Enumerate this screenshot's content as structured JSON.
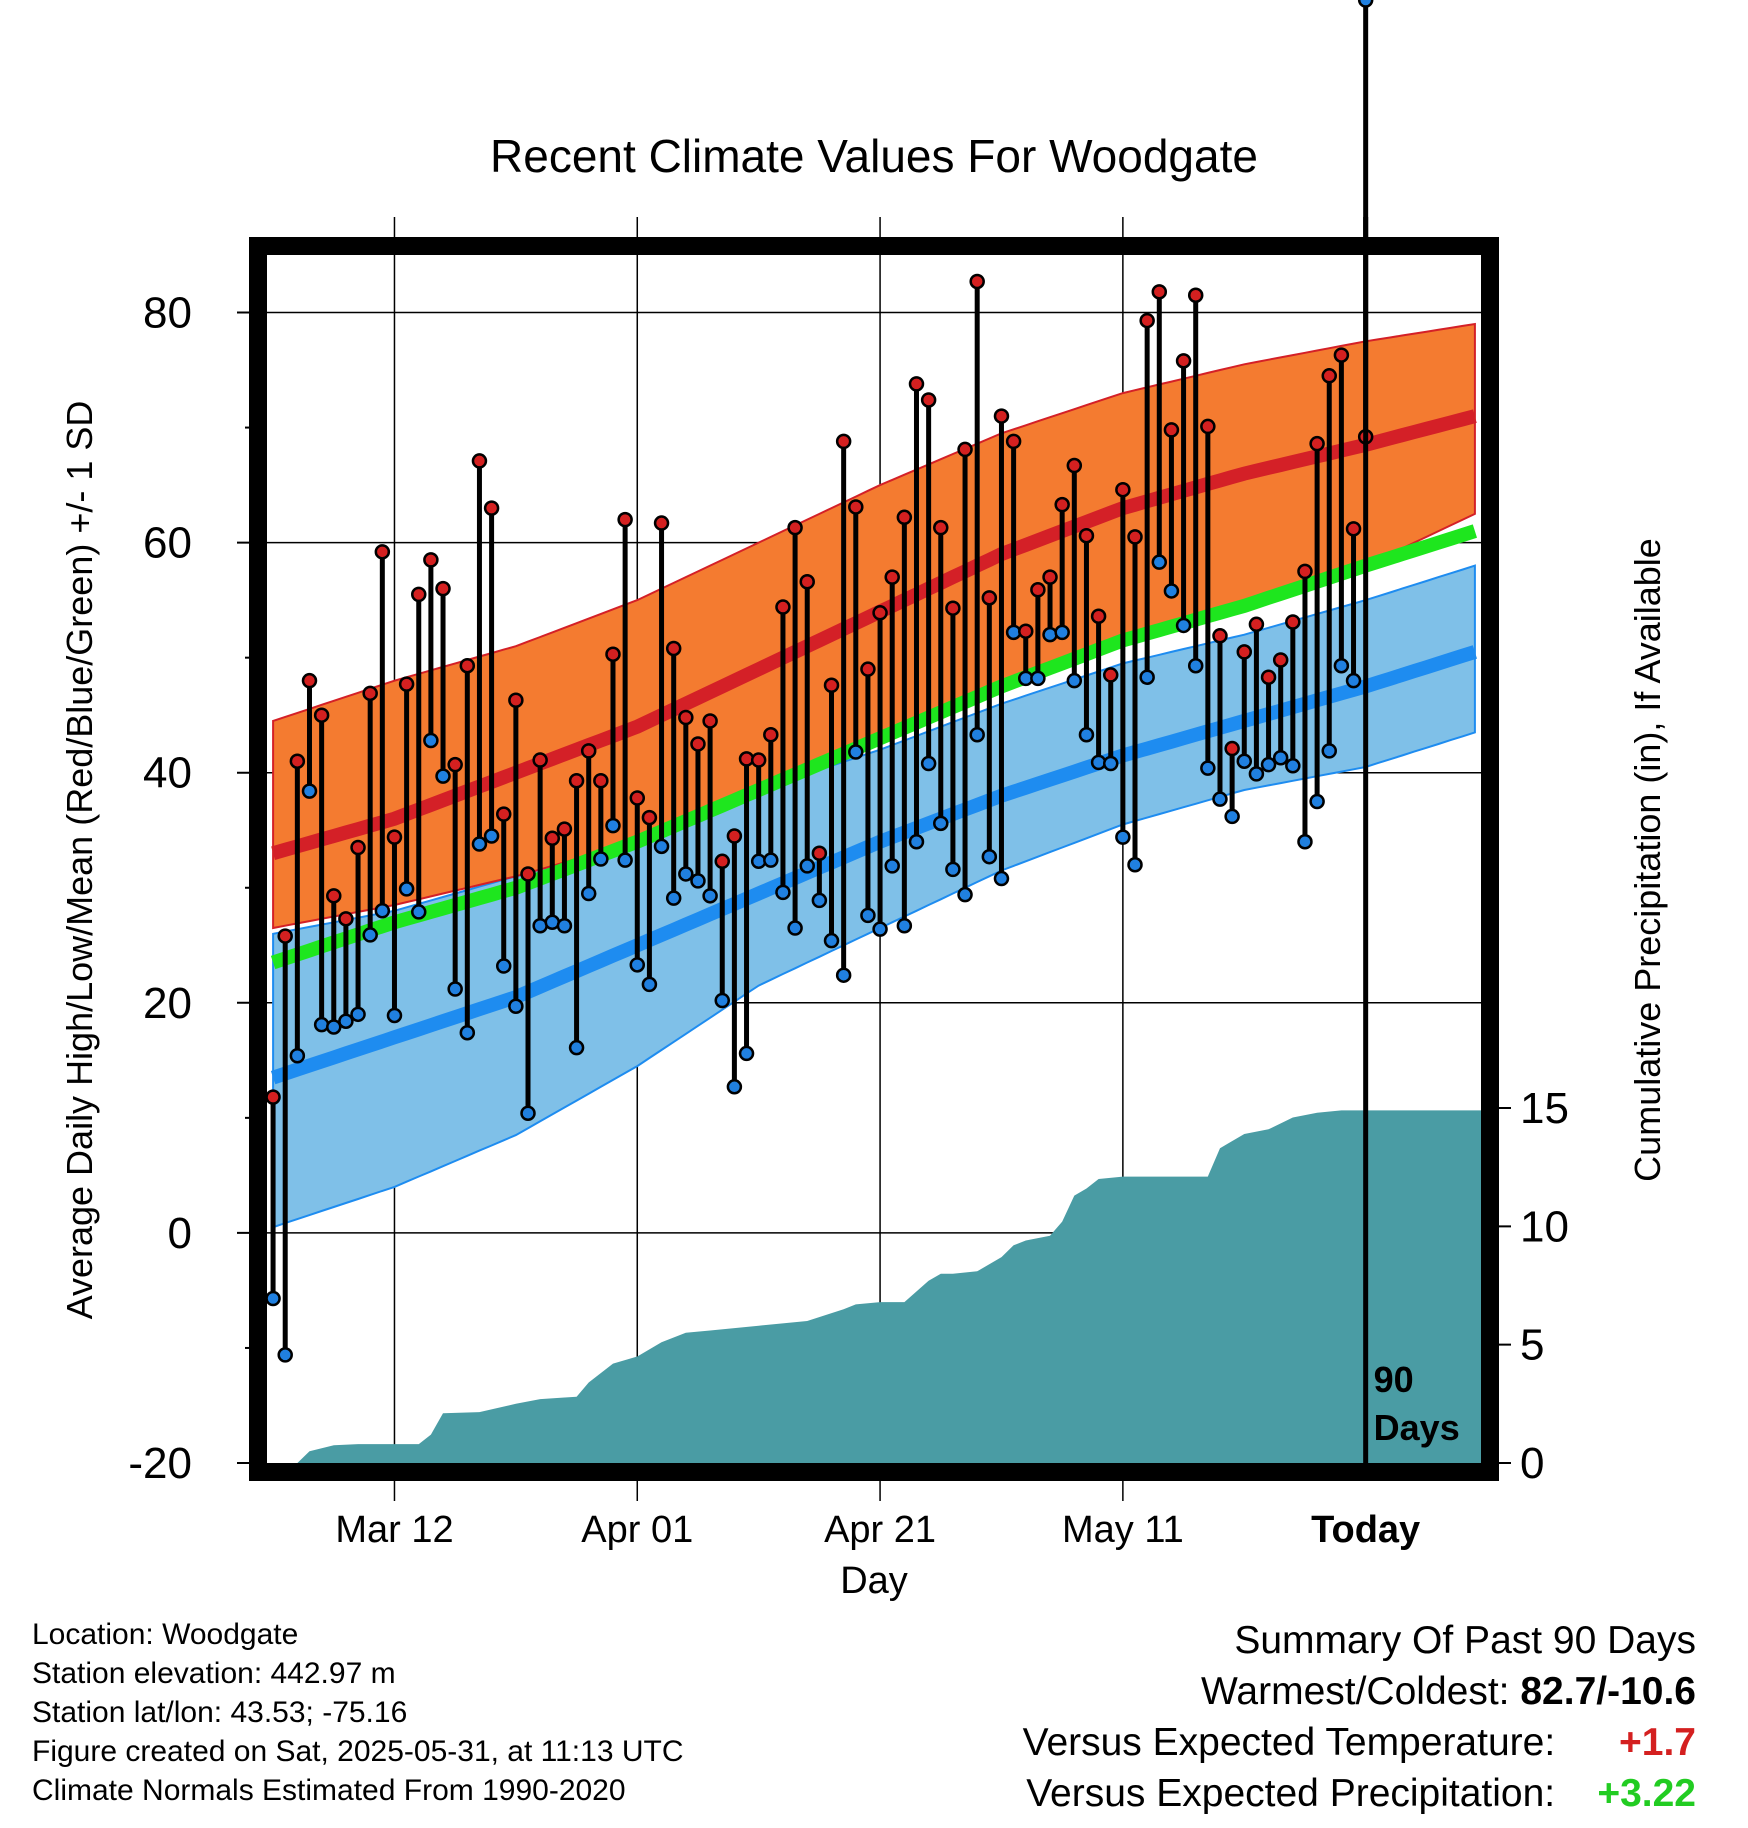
{
  "chart_data": {
    "type": "line",
    "title": "Recent Climate Values For Woodgate",
    "xlabel": "Day",
    "ylabel": "Average Daily High/Low/Mean (Red/Blue/Green) +/- 1 SD",
    "y2label": "Cumulative Precipitation (in), If Available",
    "ylim": [
      -20,
      85
    ],
    "y2lim": [
      0,
      15
    ],
    "y_ticks": [
      "80",
      "60",
      "40",
      "20",
      "0",
      "-20"
    ],
    "y2_ticks": [
      "15",
      "10",
      "5",
      "0"
    ],
    "x_tick_labels": [
      "Mar 12",
      "Apr 01",
      "Apr 21",
      "May 11",
      "Today"
    ],
    "x_tick_days": [
      10,
      30,
      50,
      70,
      90
    ],
    "xlim": [
      -0.5,
      99.5
    ],
    "grid": true,
    "today_marker": {
      "day": 90,
      "label_line1": "90",
      "label_line2": "Days"
    },
    "normals": {
      "days": [
        0,
        10,
        20,
        30,
        40,
        50,
        60,
        70,
        80,
        90,
        99
      ],
      "high_mean": [
        33,
        36,
        40,
        44,
        49,
        54,
        59,
        63,
        66,
        68.5,
        71
      ],
      "high_sd_upper": [
        44.5,
        48,
        51,
        55,
        60,
        65,
        69.5,
        73,
        75.5,
        77.5,
        79
      ],
      "high_sd_lower": [
        26.5,
        28.5,
        31,
        34,
        38.5,
        43,
        48,
        51.5,
        55,
        58,
        62.5
      ],
      "mean": [
        23.5,
        27,
        30,
        34,
        38.5,
        43,
        47.5,
        51.5,
        54.5,
        58,
        61
      ],
      "low_mean": [
        13.5,
        17,
        20.5,
        25,
        29.5,
        34,
        38,
        41.5,
        44.5,
        47.5,
        50.5
      ],
      "low_sd_upper": [
        26,
        28,
        31,
        34,
        38.5,
        42,
        46,
        49.5,
        52,
        55,
        58
      ],
      "low_sd_lower": [
        0.5,
        4,
        8.5,
        14.5,
        21.5,
        26.5,
        31.5,
        35.5,
        38.5,
        40.5,
        43.5
      ]
    },
    "series": [
      {
        "name": "High",
        "values": [
          11.8,
          25.8,
          41,
          48,
          45,
          29.3,
          27.3,
          33.5,
          46.9,
          59.2,
          34.4,
          47.7,
          55.5,
          58.5,
          56,
          40.7,
          49.3,
          67.1,
          63,
          36.4,
          46.3,
          31.2,
          41.1,
          34.3,
          35.1,
          39.3,
          41.9,
          39.3,
          50.3,
          62,
          37.8,
          36.1,
          61.7,
          50.8,
          44.8,
          42.5,
          44.5,
          32.3,
          34.5,
          41.2,
          41.1,
          43.3,
          54.4,
          61.3,
          56.6,
          33,
          47.6,
          68.8,
          63.1,
          49,
          53.9,
          57,
          62.2,
          73.8,
          72.4,
          61.3,
          54.3,
          68.1,
          82.7,
          55.2,
          71,
          68.8,
          52.3,
          55.9,
          57,
          63.3,
          66.7,
          60.6,
          53.6,
          48.5,
          64.6,
          60.5,
          79.3,
          81.8,
          69.8,
          75.8,
          81.5,
          70.1,
          51.9,
          42.1,
          50.5,
          52.9,
          48.3,
          49.8,
          53.1,
          57.5,
          68.6,
          74.5,
          76.3,
          61.2,
          69.2
        ]
      },
      {
        "name": "Low",
        "values": [
          -5.7,
          -10.6,
          15.4,
          38.4,
          18.1,
          17.9,
          18.4,
          19,
          25.9,
          28,
          18.9,
          29.9,
          27.9,
          42.8,
          39.7,
          21.2,
          17.4,
          33.8,
          34.5,
          23.2,
          19.7,
          10.4,
          26.7,
          27,
          26.7,
          16.1,
          29.5,
          32.5,
          35.4,
          32.4,
          23.3,
          21.6,
          33.6,
          29.1,
          31.2,
          30.6,
          29.3,
          20.2,
          12.7,
          15.6,
          32.3,
          32.4,
          29.6,
          26.5,
          31.9,
          28.9,
          25.4,
          22.4,
          41.8,
          27.6,
          26.4,
          31.9,
          26.7,
          34,
          40.8,
          35.6,
          31.6,
          29.4,
          43.3,
          32.7,
          30.8,
          52.2,
          48.2,
          48.2,
          52,
          52.2,
          48,
          43.3,
          40.9,
          40.8,
          34.4,
          32,
          48.3,
          58.3,
          55.8,
          52.8,
          49.3,
          40.4,
          37.7,
          36.2,
          41,
          39.9,
          40.7,
          41.3,
          40.6,
          34,
          37.5,
          41.9,
          49.3,
          48
        ]
      }
    ],
    "precipitation": {
      "days": [
        0,
        2,
        3,
        5,
        7,
        9,
        11,
        12,
        13,
        14,
        17,
        20,
        22,
        25,
        26,
        28,
        30,
        32,
        34,
        36,
        40,
        44,
        47,
        48,
        50,
        52,
        54,
        55,
        56,
        58,
        60,
        61,
        62,
        64,
        65,
        66,
        67,
        68,
        70,
        73,
        74,
        75,
        76,
        77,
        78,
        79,
        80,
        82,
        84,
        86,
        88,
        90,
        99
      ],
      "values": [
        0,
        0,
        0.5,
        0.75,
        0.8,
        0.8,
        0.8,
        0.8,
        1.2,
        2.1,
        2.15,
        2.5,
        2.7,
        2.8,
        3.4,
        4.2,
        4.5,
        5.1,
        5.5,
        5.6,
        5.8,
        6.0,
        6.5,
        6.7,
        6.8,
        6.8,
        7.7,
        8.0,
        8.0,
        8.1,
        8.7,
        9.2,
        9.4,
        9.6,
        10.2,
        11.3,
        11.6,
        12.0,
        12.1,
        12.1,
        12.1,
        12.1,
        12.1,
        12.1,
        13.3,
        13.6,
        13.9,
        14.1,
        14.6,
        14.8,
        14.9,
        14.9,
        14.9
      ]
    }
  },
  "info": {
    "location": "Location: Woodgate",
    "elevation": "Station elevation: 442.97 m",
    "latlon": "Station lat/lon: 43.53; -75.16",
    "created": "Figure created on Sat, 2025-05-31, at 11:13 UTC",
    "normals_note": "Climate Normals Estimated From 1990-2020"
  },
  "summary": {
    "heading": "Summary Of Past 90 Days",
    "warmest_label": "Warmest/Coldest:",
    "warmest_value": "82.7/-10.6",
    "temp_label": "Versus Expected Temperature:",
    "temp_value": "+1.7",
    "precip_label": "Versus Expected Precipitation:",
    "precip_value": "+3.22"
  },
  "colors": {
    "high_band": "#f47b30",
    "high_line": "#d42027",
    "mean_line": "#1ee61e",
    "low_band": "#7fc0e8",
    "low_line": "#1e8cf0",
    "precip_fill": "#4a9ca4",
    "high_dot": "#d42020",
    "low_dot": "#2080e0"
  }
}
